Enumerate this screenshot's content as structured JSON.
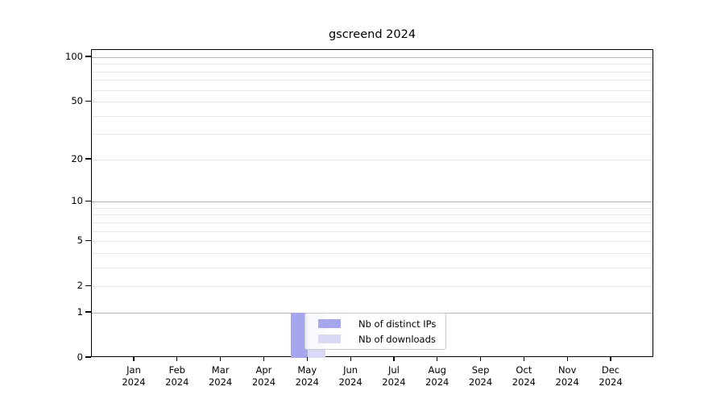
{
  "chart_data": {
    "type": "bar",
    "title": "gscreend 2024",
    "categories": [
      "Jan",
      "Feb",
      "Mar",
      "Apr",
      "May",
      "Jun",
      "Jul",
      "Aug",
      "Sep",
      "Oct",
      "Nov",
      "Dec"
    ],
    "x_year": "2024",
    "series": [
      {
        "name": "Nb of distinct IPs",
        "color": "#a6a6ee",
        "values": [
          0,
          0,
          0,
          0,
          1,
          0,
          0,
          0,
          0,
          0,
          0,
          0
        ]
      },
      {
        "name": "Nb of downloads",
        "color": "#d9d9f6",
        "values": [
          0,
          0,
          0,
          0,
          1,
          0,
          0,
          0,
          0,
          0,
          0,
          0
        ]
      }
    ],
    "xlabel": "",
    "ylabel": "",
    "yscale": "log1p",
    "ylim": [
      0,
      112
    ],
    "yticks": [
      0,
      1,
      2,
      5,
      10,
      20,
      50,
      100
    ],
    "gridlines_major": [
      1,
      10,
      100
    ],
    "gridlines_minor": [
      2,
      3,
      4,
      5,
      6,
      7,
      8,
      9,
      20,
      30,
      40,
      50,
      60,
      70,
      80,
      90
    ],
    "grid": true,
    "legend_position": "lower center",
    "colors": {
      "grid_major": "#b5b5b5",
      "grid_minor": "#e9e9e9",
      "frame": "#000000"
    }
  }
}
